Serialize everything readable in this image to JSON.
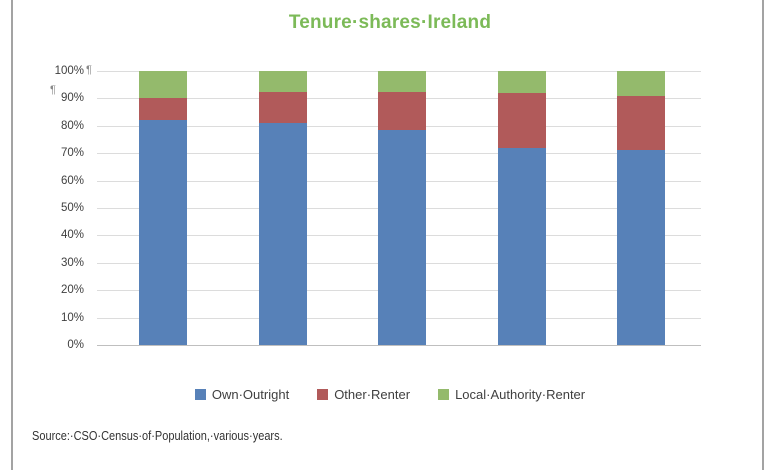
{
  "marks": {
    "pilcrow_after_top_label": "¶",
    "pilcrow_solo": "¶"
  },
  "source_note": "Source:·CSO·Census·of·Population,·various·years.",
  "chart_data": {
    "type": "bar",
    "stacked": true,
    "title": "Tenure·shares·Ireland",
    "title_color": "#7CBA58",
    "categories": [
      "",
      "",
      "",
      "",
      ""
    ],
    "series": [
      {
        "name": "Own·Outright",
        "color": "#5781B8",
        "values": [
          82,
          81,
          78.5,
          72,
          71
        ]
      },
      {
        "name": "Other·Renter",
        "color": "#B15A5A",
        "values": [
          8,
          11.5,
          14,
          20,
          20
        ]
      },
      {
        "name": "Local·Authority·Renter",
        "color": "#94BA6C",
        "values": [
          10,
          7.5,
          7.5,
          8,
          9
        ]
      }
    ],
    "y_ticks": [
      "100%",
      "90%",
      "80%",
      "70%",
      "60%",
      "50%",
      "40%",
      "30%",
      "20%",
      "10%",
      "0%"
    ],
    "ylim": [
      0,
      100
    ],
    "grid": true,
    "legend_position": "bottom",
    "xlabel": "",
    "ylabel": ""
  }
}
